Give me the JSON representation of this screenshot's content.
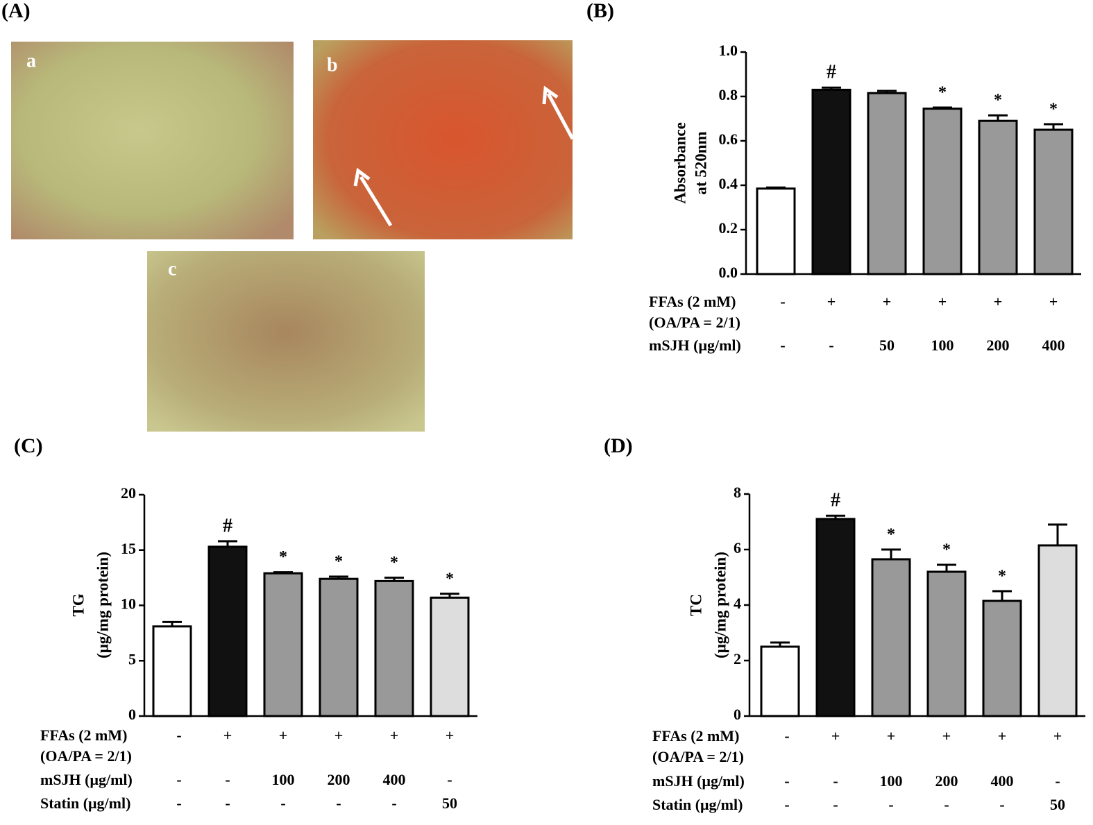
{
  "panel_labels": [
    "(A)",
    "(B)",
    "(C)",
    "(D)"
  ],
  "micrographs": [
    "a",
    "b",
    "c"
  ],
  "chart_data": [
    {
      "type": "bar",
      "ylabel": [
        "Absorbance",
        "at 520nm"
      ],
      "ylim": [
        0,
        1
      ],
      "yticks": [
        {
          "value": 0,
          "label": "0.0"
        },
        0.2,
        0.4,
        0.6,
        0.8,
        {
          "value": 1,
          "label": "1.0"
        }
      ],
      "values": [
        0.385,
        0.83,
        0.815,
        0.745,
        0.69,
        0.65
      ],
      "errors": [
        0.005,
        0.01,
        0.01,
        0.005,
        0.025,
        0.025
      ],
      "colors": [
        "#ffffff",
        "#111111",
        "#999999",
        "#999999",
        "#999999",
        "#999999"
      ],
      "annotations": [
        null,
        "#",
        null,
        "*",
        "*",
        "*"
      ],
      "conditions": [
        {
          "label": "FFAs (2 mM)",
          "sublabel": "(OA/PA = 2/1)",
          "cells": [
            "-",
            "+",
            "+",
            "+",
            "+",
            "+"
          ]
        },
        {
          "label": "mSJH (μg/ml)",
          "cells": [
            "-",
            "-",
            "50",
            "100",
            "200",
            "400"
          ]
        }
      ]
    },
    {
      "type": "bar",
      "ylabel": [
        "TG",
        "(μg/mg protein)"
      ],
      "ylim": [
        0,
        20
      ],
      "yticks": [
        0,
        5,
        10,
        15,
        20
      ],
      "values": [
        8.1,
        15.3,
        12.9,
        12.4,
        12.2,
        10.7
      ],
      "errors": [
        0.4,
        0.5,
        0.1,
        0.2,
        0.3,
        0.35
      ],
      "colors": [
        "#ffffff",
        "#111111",
        "#999999",
        "#999999",
        "#999999",
        "#dddddd"
      ],
      "annotations": [
        null,
        "#",
        "*",
        "*",
        "*",
        "*"
      ],
      "conditions": [
        {
          "label": "FFAs (2 mM)",
          "sublabel": "(OA/PA = 2/1)",
          "cells": [
            "-",
            "+",
            "+",
            "+",
            "+",
            "+"
          ]
        },
        {
          "label": "mSJH (μg/ml)",
          "cells": [
            "-",
            "-",
            "100",
            "200",
            "400",
            "-"
          ]
        },
        {
          "label": "Statin (μg/ml)",
          "cells": [
            "-",
            "-",
            "-",
            "-",
            "-",
            "50"
          ]
        }
      ]
    },
    {
      "type": "bar",
      "ylabel": [
        "TC",
        "(μg/mg protein)"
      ],
      "ylim": [
        0,
        8
      ],
      "yticks": [
        0,
        2,
        4,
        6,
        8
      ],
      "values": [
        2.5,
        7.1,
        5.65,
        5.2,
        4.15,
        6.15
      ],
      "errors": [
        0.15,
        0.12,
        0.35,
        0.25,
        0.35,
        0.75
      ],
      "colors": [
        "#ffffff",
        "#111111",
        "#999999",
        "#999999",
        "#999999",
        "#dddddd"
      ],
      "annotations": [
        null,
        "#",
        "*",
        "*",
        "*",
        null
      ],
      "conditions": [
        {
          "label": "FFAs (2 mM)",
          "sublabel": "(OA/PA = 2/1)",
          "cells": [
            "-",
            "+",
            "+",
            "+",
            "+",
            "+"
          ]
        },
        {
          "label": "mSJH (μg/ml)",
          "cells": [
            "-",
            "-",
            "100",
            "200",
            "400",
            "-"
          ]
        },
        {
          "label": "Statin (μg/ml)",
          "cells": [
            "-",
            "-",
            "-",
            "-",
            "-",
            "50"
          ]
        }
      ]
    }
  ]
}
